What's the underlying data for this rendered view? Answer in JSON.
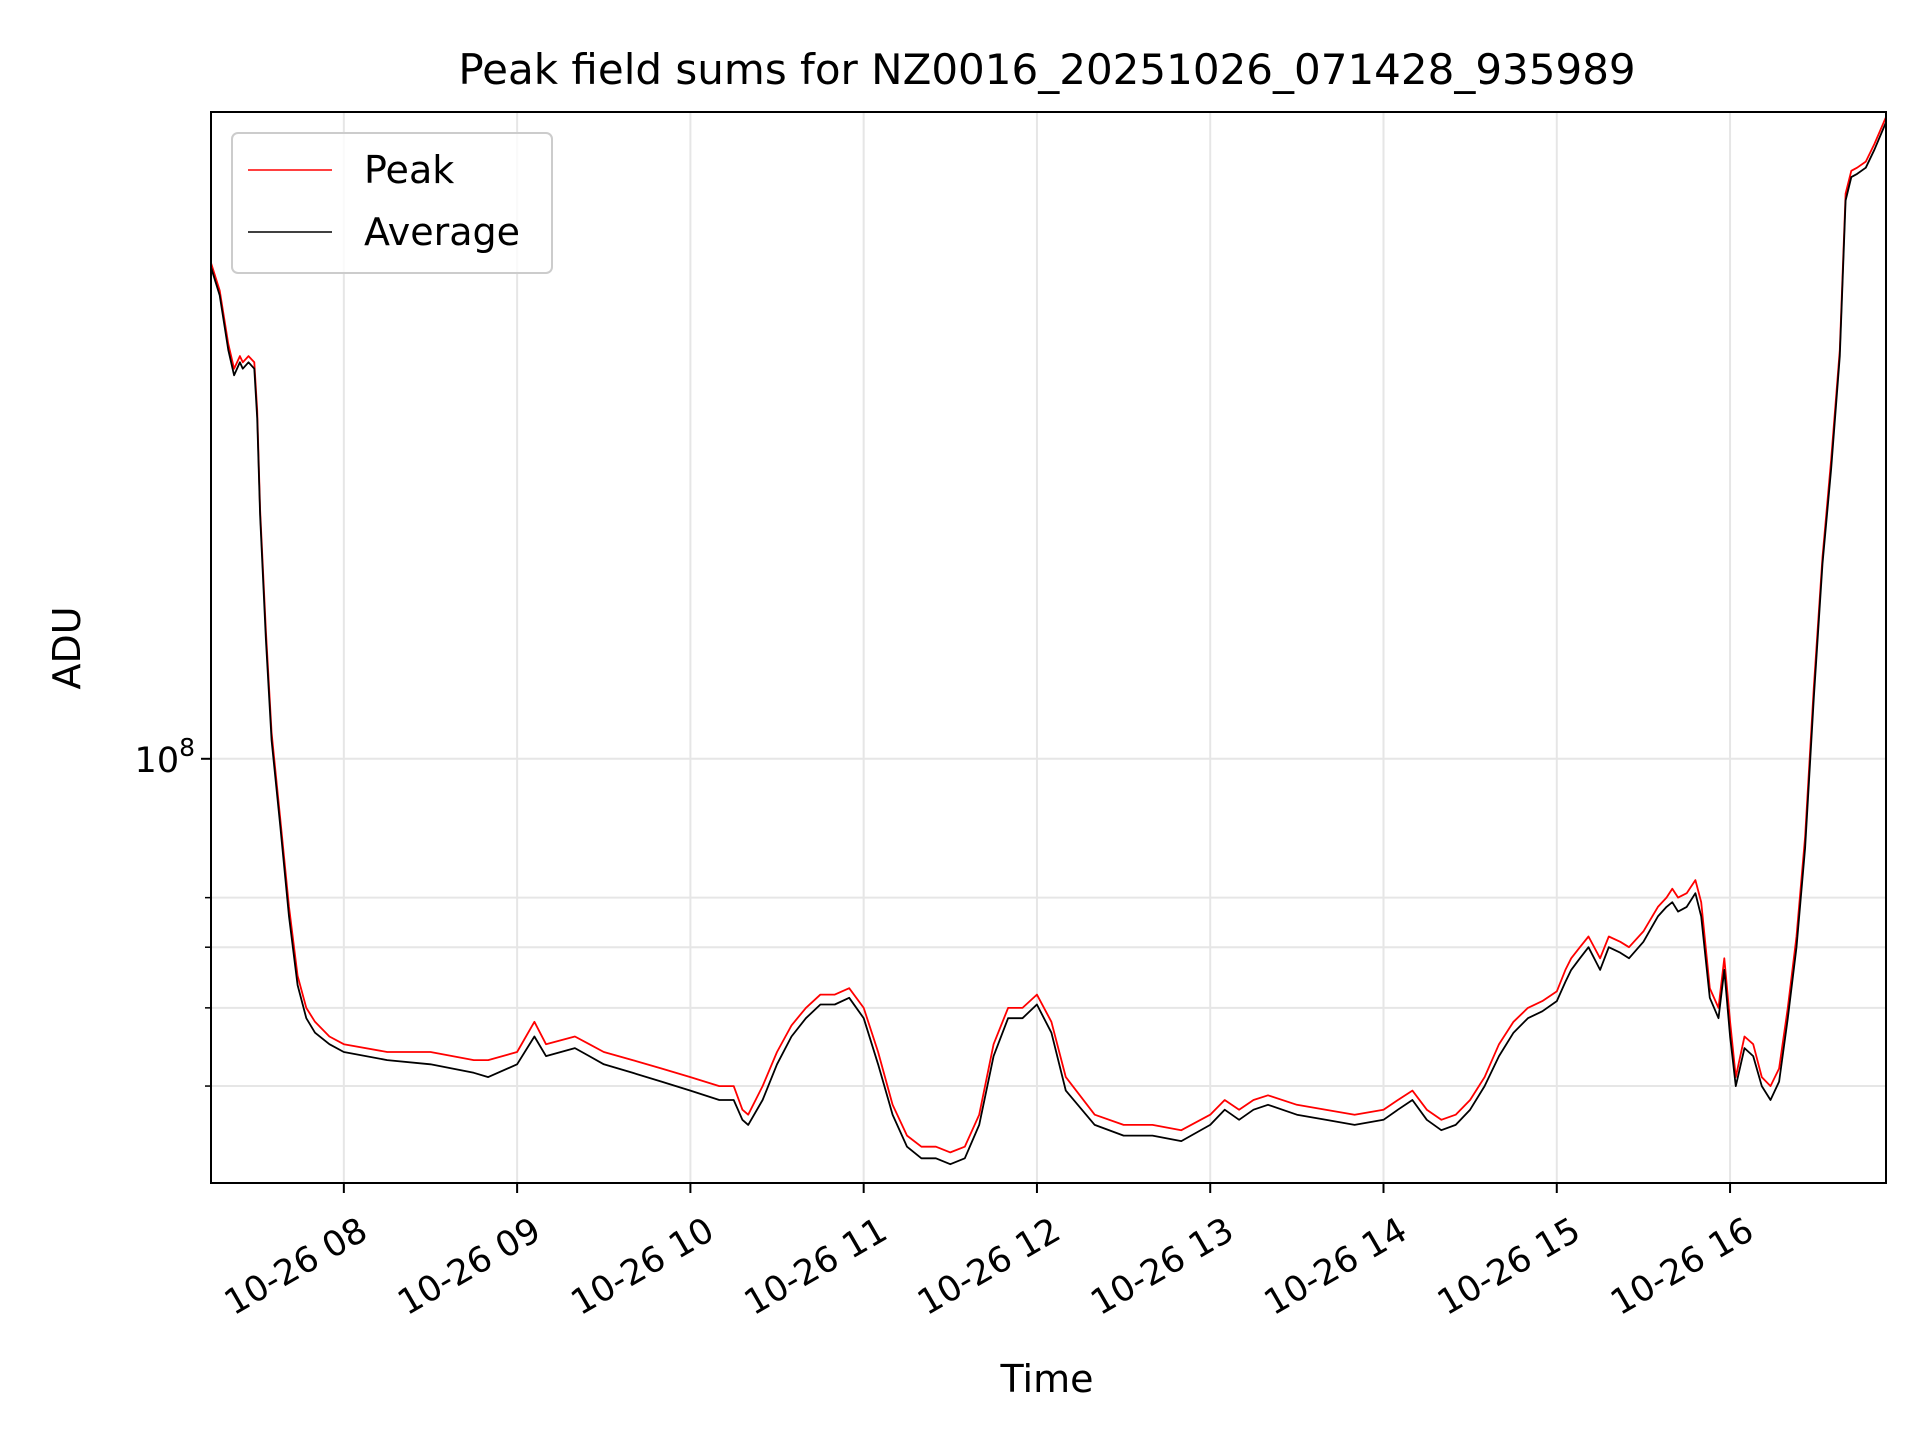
{
  "chart_data": {
    "type": "line",
    "title": "Peak field sums for NZ0016_20251026_071428_935989",
    "xlabel": "Time",
    "ylabel": "ADU",
    "y_scale": "log",
    "grid": true,
    "legend_position": "top-left",
    "xlim": [
      "2025-10-26 07:14",
      "2025-10-26 16:54"
    ],
    "ylim": [
      21000000,
      1080000000
    ],
    "x_tick_labels": [
      "10-26 08",
      "10-26 09",
      "10-26 10",
      "10-26 11",
      "10-26 12",
      "10-26 13",
      "10-26 14",
      "10-26 15",
      "10-26 16"
    ],
    "x_tick_values": [
      "2025-10-26 08:00",
      "2025-10-26 09:00",
      "2025-10-26 10:00",
      "2025-10-26 11:00",
      "2025-10-26 12:00",
      "2025-10-26 13:00",
      "2025-10-26 14:00",
      "2025-10-26 15:00",
      "2025-10-26 16:00"
    ],
    "y_major_tick": {
      "value": 100000000,
      "label_base": "10",
      "label_exp": "8"
    },
    "y_minor_ticks": [
      30000000,
      40000000,
      50000000,
      60000000
    ],
    "series": [
      {
        "name": "Peak",
        "color": "#ff0000",
        "x": [
          "2025-10-26 07:14",
          "2025-10-26 07:17",
          "2025-10-26 07:20",
          "2025-10-26 07:22",
          "2025-10-26 07:24",
          "2025-10-26 07:25",
          "2025-10-26 07:27",
          "2025-10-26 07:29",
          "2025-10-26 07:30",
          "2025-10-26 07:31",
          "2025-10-26 07:33",
          "2025-10-26 07:35",
          "2025-10-26 07:38",
          "2025-10-26 07:41",
          "2025-10-26 07:44",
          "2025-10-26 07:47",
          "2025-10-26 07:50",
          "2025-10-26 07:55",
          "2025-10-26 08:00",
          "2025-10-26 08:15",
          "2025-10-26 08:30",
          "2025-10-26 08:45",
          "2025-10-26 08:50",
          "2025-10-26 09:00",
          "2025-10-26 09:06",
          "2025-10-26 09:10",
          "2025-10-26 09:20",
          "2025-10-26 09:25",
          "2025-10-26 09:30",
          "2025-10-26 09:40",
          "2025-10-26 09:50",
          "2025-10-26 10:00",
          "2025-10-26 10:10",
          "2025-10-26 10:15",
          "2025-10-26 10:18",
          "2025-10-26 10:20",
          "2025-10-26 10:25",
          "2025-10-26 10:30",
          "2025-10-26 10:35",
          "2025-10-26 10:40",
          "2025-10-26 10:45",
          "2025-10-26 10:50",
          "2025-10-26 10:55",
          "2025-10-26 11:00",
          "2025-10-26 11:05",
          "2025-10-26 11:10",
          "2025-10-26 11:15",
          "2025-10-26 11:20",
          "2025-10-26 11:25",
          "2025-10-26 11:30",
          "2025-10-26 11:35",
          "2025-10-26 11:40",
          "2025-10-26 11:45",
          "2025-10-26 11:50",
          "2025-10-26 11:55",
          "2025-10-26 12:00",
          "2025-10-26 12:05",
          "2025-10-26 12:10",
          "2025-10-26 12:20",
          "2025-10-26 12:30",
          "2025-10-26 12:40",
          "2025-10-26 12:50",
          "2025-10-26 13:00",
          "2025-10-26 13:05",
          "2025-10-26 13:10",
          "2025-10-26 13:15",
          "2025-10-26 13:20",
          "2025-10-26 13:30",
          "2025-10-26 13:40",
          "2025-10-26 13:50",
          "2025-10-26 14:00",
          "2025-10-26 14:05",
          "2025-10-26 14:10",
          "2025-10-26 14:15",
          "2025-10-26 14:20",
          "2025-10-26 14:25",
          "2025-10-26 14:30",
          "2025-10-26 14:35",
          "2025-10-26 14:40",
          "2025-10-26 14:45",
          "2025-10-26 14:50",
          "2025-10-26 14:55",
          "2025-10-26 15:00",
          "2025-10-26 15:03",
          "2025-10-26 15:05",
          "2025-10-26 15:08",
          "2025-10-26 15:11",
          "2025-10-26 15:15",
          "2025-10-26 15:18",
          "2025-10-26 15:22",
          "2025-10-26 15:25",
          "2025-10-26 15:30",
          "2025-10-26 15:35",
          "2025-10-26 15:38",
          "2025-10-26 15:40",
          "2025-10-26 15:42",
          "2025-10-26 15:45",
          "2025-10-26 15:48",
          "2025-10-26 15:50",
          "2025-10-26 15:53",
          "2025-10-26 15:56",
          "2025-10-26 15:58",
          "2025-10-26 16:00",
          "2025-10-26 16:02",
          "2025-10-26 16:05",
          "2025-10-26 16:08",
          "2025-10-26 16:11",
          "2025-10-26 16:14",
          "2025-10-26 16:17",
          "2025-10-26 16:20",
          "2025-10-26 16:23",
          "2025-10-26 16:26",
          "2025-10-26 16:29",
          "2025-10-26 16:32",
          "2025-10-26 16:35",
          "2025-10-26 16:38",
          "2025-10-26 16:40",
          "2025-10-26 16:42",
          "2025-10-26 16:44",
          "2025-10-26 16:47",
          "2025-10-26 16:50",
          "2025-10-26 16:54"
        ],
        "y": [
          620000000,
          560000000,
          460000000,
          420000000,
          440000000,
          430000000,
          440000000,
          430000000,
          360000000,
          250000000,
          160000000,
          110000000,
          80000000,
          58000000,
          45000000,
          40000000,
          38000000,
          36000000,
          35000000,
          34000000,
          34000000,
          33000000,
          33000000,
          34000000,
          38000000,
          35000000,
          36000000,
          35000000,
          34000000,
          33000000,
          32000000,
          31000000,
          30000000,
          30000000,
          27500000,
          27000000,
          30000000,
          34000000,
          37500000,
          40000000,
          42000000,
          42000000,
          43000000,
          40000000,
          34000000,
          28000000,
          25000000,
          24000000,
          24000000,
          23500000,
          24000000,
          27000000,
          35000000,
          40000000,
          40000000,
          42000000,
          38000000,
          31000000,
          27000000,
          26000000,
          26000000,
          25500000,
          27000000,
          28500000,
          27500000,
          28500000,
          29000000,
          28000000,
          27500000,
          27000000,
          27500000,
          28500000,
          29500000,
          27500000,
          26500000,
          27000000,
          28500000,
          31000000,
          35000000,
          38000000,
          40000000,
          41000000,
          42500000,
          46000000,
          48000000,
          50000000,
          52000000,
          48000000,
          52000000,
          51000000,
          50000000,
          53000000,
          58000000,
          60000000,
          62000000,
          60000000,
          61000000,
          64000000,
          59000000,
          43000000,
          40000000,
          48000000,
          38000000,
          31000000,
          36000000,
          35000000,
          31000000,
          30000000,
          32000000,
          40000000,
          52000000,
          75000000,
          130000000,
          210000000,
          300000000,
          450000000,
          800000000,
          870000000,
          880000000,
          900000000,
          960000000,
          1060000000
        ]
      },
      {
        "name": "Average",
        "color": "#000000",
        "x": [
          "2025-10-26 07:14",
          "2025-10-26 07:17",
          "2025-10-26 07:20",
          "2025-10-26 07:22",
          "2025-10-26 07:24",
          "2025-10-26 07:25",
          "2025-10-26 07:27",
          "2025-10-26 07:29",
          "2025-10-26 07:30",
          "2025-10-26 07:31",
          "2025-10-26 07:33",
          "2025-10-26 07:35",
          "2025-10-26 07:38",
          "2025-10-26 07:41",
          "2025-10-26 07:44",
          "2025-10-26 07:47",
          "2025-10-26 07:50",
          "2025-10-26 07:55",
          "2025-10-26 08:00",
          "2025-10-26 08:15",
          "2025-10-26 08:30",
          "2025-10-26 08:45",
          "2025-10-26 08:50",
          "2025-10-26 09:00",
          "2025-10-26 09:06",
          "2025-10-26 09:10",
          "2025-10-26 09:20",
          "2025-10-26 09:25",
          "2025-10-26 09:30",
          "2025-10-26 09:40",
          "2025-10-26 09:50",
          "2025-10-26 10:00",
          "2025-10-26 10:10",
          "2025-10-26 10:15",
          "2025-10-26 10:18",
          "2025-10-26 10:20",
          "2025-10-26 10:25",
          "2025-10-26 10:30",
          "2025-10-26 10:35",
          "2025-10-26 10:40",
          "2025-10-26 10:45",
          "2025-10-26 10:50",
          "2025-10-26 10:55",
          "2025-10-26 11:00",
          "2025-10-26 11:05",
          "2025-10-26 11:10",
          "2025-10-26 11:15",
          "2025-10-26 11:20",
          "2025-10-26 11:25",
          "2025-10-26 11:30",
          "2025-10-26 11:35",
          "2025-10-26 11:40",
          "2025-10-26 11:45",
          "2025-10-26 11:50",
          "2025-10-26 11:55",
          "2025-10-26 12:00",
          "2025-10-26 12:05",
          "2025-10-26 12:10",
          "2025-10-26 12:20",
          "2025-10-26 12:30",
          "2025-10-26 12:40",
          "2025-10-26 12:50",
          "2025-10-26 13:00",
          "2025-10-26 13:05",
          "2025-10-26 13:10",
          "2025-10-26 13:15",
          "2025-10-26 13:20",
          "2025-10-26 13:30",
          "2025-10-26 13:40",
          "2025-10-26 13:50",
          "2025-10-26 14:00",
          "2025-10-26 14:05",
          "2025-10-26 14:10",
          "2025-10-26 14:15",
          "2025-10-26 14:20",
          "2025-10-26 14:25",
          "2025-10-26 14:30",
          "2025-10-26 14:35",
          "2025-10-26 14:40",
          "2025-10-26 14:45",
          "2025-10-26 14:50",
          "2025-10-26 14:55",
          "2025-10-26 15:00",
          "2025-10-26 15:03",
          "2025-10-26 15:05",
          "2025-10-26 15:08",
          "2025-10-26 15:11",
          "2025-10-26 15:15",
          "2025-10-26 15:18",
          "2025-10-26 15:22",
          "2025-10-26 15:25",
          "2025-10-26 15:30",
          "2025-10-26 15:35",
          "2025-10-26 15:38",
          "2025-10-26 15:40",
          "2025-10-26 15:42",
          "2025-10-26 15:45",
          "2025-10-26 15:48",
          "2025-10-26 15:50",
          "2025-10-26 15:53",
          "2025-10-26 15:56",
          "2025-10-26 15:58",
          "2025-10-26 16:00",
          "2025-10-26 16:02",
          "2025-10-26 16:05",
          "2025-10-26 16:08",
          "2025-10-26 16:11",
          "2025-10-26 16:14",
          "2025-10-26 16:17",
          "2025-10-26 16:20",
          "2025-10-26 16:23",
          "2025-10-26 16:26",
          "2025-10-26 16:29",
          "2025-10-26 16:32",
          "2025-10-26 16:35",
          "2025-10-26 16:38",
          "2025-10-26 16:40",
          "2025-10-26 16:42",
          "2025-10-26 16:44",
          "2025-10-26 16:47",
          "2025-10-26 16:50",
          "2025-10-26 16:54"
        ],
        "y": [
          610000000,
          550000000,
          450000000,
          410000000,
          430000000,
          420000000,
          430000000,
          420000000,
          350000000,
          245000000,
          155000000,
          107000000,
          78000000,
          56000000,
          43500000,
          38500000,
          36500000,
          35000000,
          34000000,
          33000000,
          32500000,
          31500000,
          31000000,
          32500000,
          36000000,
          33500000,
          34500000,
          33500000,
          32500000,
          31500000,
          30500000,
          29500000,
          28500000,
          28500000,
          26500000,
          26000000,
          28500000,
          32500000,
          36000000,
          38500000,
          40500000,
          40500000,
          41500000,
          38500000,
          32500000,
          27000000,
          24000000,
          23000000,
          23000000,
          22500000,
          23000000,
          26000000,
          33500000,
          38500000,
          38500000,
          40500000,
          36500000,
          29500000,
          26000000,
          25000000,
          25000000,
          24500000,
          26000000,
          27500000,
          26500000,
          27500000,
          28000000,
          27000000,
          26500000,
          26000000,
          26500000,
          27500000,
          28500000,
          26500000,
          25500000,
          26000000,
          27500000,
          30000000,
          33500000,
          36500000,
          38500000,
          39500000,
          41000000,
          44000000,
          46000000,
          48000000,
          50000000,
          46000000,
          50000000,
          49000000,
          48000000,
          51000000,
          56000000,
          58000000,
          59000000,
          57000000,
          58000000,
          61000000,
          56000000,
          41500000,
          38500000,
          46000000,
          36000000,
          30000000,
          34500000,
          33500000,
          30000000,
          28500000,
          30500000,
          38500000,
          50000000,
          72000000,
          125000000,
          205000000,
          290000000,
          440000000,
          780000000,
          850000000,
          860000000,
          880000000,
          940000000,
          1040000000
        ]
      }
    ]
  }
}
